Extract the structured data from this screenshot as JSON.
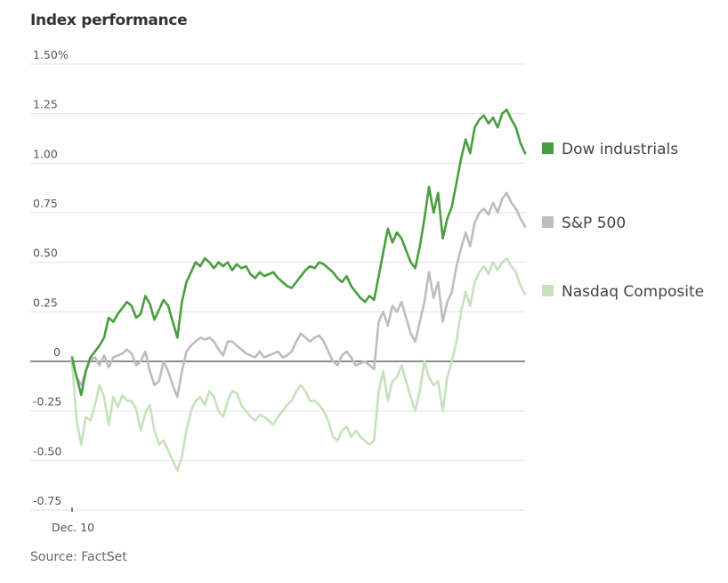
{
  "chart_data": {
    "type": "line",
    "title": "Index performance",
    "source": "Source: FactSet",
    "xlabel": "",
    "ylabel": "",
    "x_tick_labels": [
      "Dec. 10"
    ],
    "y_ticks": [
      {
        "value": 1.5,
        "label": "1.50%"
      },
      {
        "value": 1.25,
        "label": "1.25"
      },
      {
        "value": 1.0,
        "label": "1.00"
      },
      {
        "value": 0.75,
        "label": "0.75"
      },
      {
        "value": 0.5,
        "label": "0.50"
      },
      {
        "value": 0.25,
        "label": "0.25"
      },
      {
        "value": 0,
        "label": "0"
      },
      {
        "value": -0.25,
        "label": "-0.25"
      },
      {
        "value": -0.5,
        "label": "-0.50"
      },
      {
        "value": -0.75,
        "label": "-0.75"
      }
    ],
    "ylim": [
      -0.75,
      1.5
    ],
    "xlim": [
      0,
      99
    ],
    "grid": true,
    "legend_placement": "right",
    "series": [
      {
        "name": "Dow industrials",
        "color": "#4a9e3f",
        "values": [
          0.02,
          -0.08,
          -0.17,
          -0.05,
          0.02,
          0.05,
          0.08,
          0.12,
          0.22,
          0.2,
          0.24,
          0.27,
          0.3,
          0.28,
          0.22,
          0.24,
          0.33,
          0.29,
          0.21,
          0.26,
          0.31,
          0.28,
          0.2,
          0.12,
          0.3,
          0.4,
          0.45,
          0.5,
          0.48,
          0.52,
          0.5,
          0.47,
          0.5,
          0.48,
          0.5,
          0.46,
          0.49,
          0.47,
          0.48,
          0.44,
          0.42,
          0.45,
          0.43,
          0.44,
          0.45,
          0.42,
          0.4,
          0.38,
          0.37,
          0.4,
          0.43,
          0.46,
          0.48,
          0.47,
          0.5,
          0.49,
          0.47,
          0.45,
          0.42,
          0.4,
          0.43,
          0.38,
          0.35,
          0.32,
          0.3,
          0.33,
          0.31,
          0.43,
          0.55,
          0.67,
          0.6,
          0.65,
          0.62,
          0.56,
          0.5,
          0.47,
          0.58,
          0.72,
          0.88,
          0.75,
          0.85,
          0.62,
          0.72,
          0.78,
          0.9,
          1.02,
          1.12,
          1.05,
          1.18,
          1.22,
          1.24,
          1.2,
          1.23,
          1.18,
          1.25,
          1.27,
          1.22,
          1.18,
          1.1,
          1.05
        ]
      },
      {
        "name": "S&P 500",
        "color": "#bdbdbd",
        "values": [
          0.0,
          -0.08,
          -0.12,
          -0.05,
          0.01,
          0.02,
          -0.02,
          0.03,
          -0.03,
          0.02,
          0.03,
          0.04,
          0.06,
          0.04,
          -0.02,
          0.0,
          0.05,
          -0.05,
          -0.12,
          -0.1,
          0.0,
          -0.05,
          -0.12,
          -0.18,
          -0.05,
          0.05,
          0.08,
          0.1,
          0.12,
          0.11,
          0.12,
          0.1,
          0.06,
          0.03,
          0.1,
          0.1,
          0.08,
          0.06,
          0.04,
          0.03,
          0.02,
          0.05,
          0.02,
          0.03,
          0.04,
          0.05,
          0.02,
          0.03,
          0.05,
          0.1,
          0.14,
          0.12,
          0.1,
          0.12,
          0.13,
          0.1,
          0.05,
          0.0,
          -0.02,
          0.03,
          0.05,
          0.02,
          -0.02,
          -0.01,
          0.0,
          -0.02,
          -0.04,
          0.2,
          0.25,
          0.18,
          0.28,
          0.25,
          0.3,
          0.22,
          0.14,
          0.1,
          0.2,
          0.3,
          0.45,
          0.32,
          0.4,
          0.2,
          0.3,
          0.35,
          0.48,
          0.57,
          0.65,
          0.58,
          0.7,
          0.75,
          0.77,
          0.74,
          0.8,
          0.75,
          0.82,
          0.85,
          0.8,
          0.77,
          0.72,
          0.68
        ]
      },
      {
        "name": "Nasdaq Composite",
        "color": "#c4e2bc",
        "values": [
          0.0,
          -0.3,
          -0.42,
          -0.28,
          -0.3,
          -0.22,
          -0.12,
          -0.18,
          -0.32,
          -0.18,
          -0.23,
          -0.17,
          -0.2,
          -0.2,
          -0.24,
          -0.35,
          -0.26,
          -0.22,
          -0.35,
          -0.42,
          -0.4,
          -0.45,
          -0.5,
          -0.55,
          -0.48,
          -0.35,
          -0.25,
          -0.2,
          -0.18,
          -0.22,
          -0.15,
          -0.18,
          -0.25,
          -0.28,
          -0.2,
          -0.15,
          -0.16,
          -0.22,
          -0.25,
          -0.28,
          -0.3,
          -0.27,
          -0.28,
          -0.3,
          -0.32,
          -0.28,
          -0.25,
          -0.22,
          -0.2,
          -0.15,
          -0.12,
          -0.15,
          -0.2,
          -0.2,
          -0.22,
          -0.25,
          -0.3,
          -0.38,
          -0.4,
          -0.35,
          -0.33,
          -0.38,
          -0.35,
          -0.38,
          -0.4,
          -0.42,
          -0.4,
          -0.15,
          -0.05,
          -0.2,
          -0.1,
          -0.08,
          -0.02,
          -0.1,
          -0.18,
          -0.25,
          -0.15,
          0.0,
          -0.08,
          -0.12,
          -0.1,
          -0.25,
          -0.08,
          0.0,
          0.1,
          0.25,
          0.35,
          0.28,
          0.4,
          0.45,
          0.48,
          0.44,
          0.5,
          0.46,
          0.5,
          0.52,
          0.48,
          0.45,
          0.38,
          0.34
        ]
      }
    ]
  }
}
